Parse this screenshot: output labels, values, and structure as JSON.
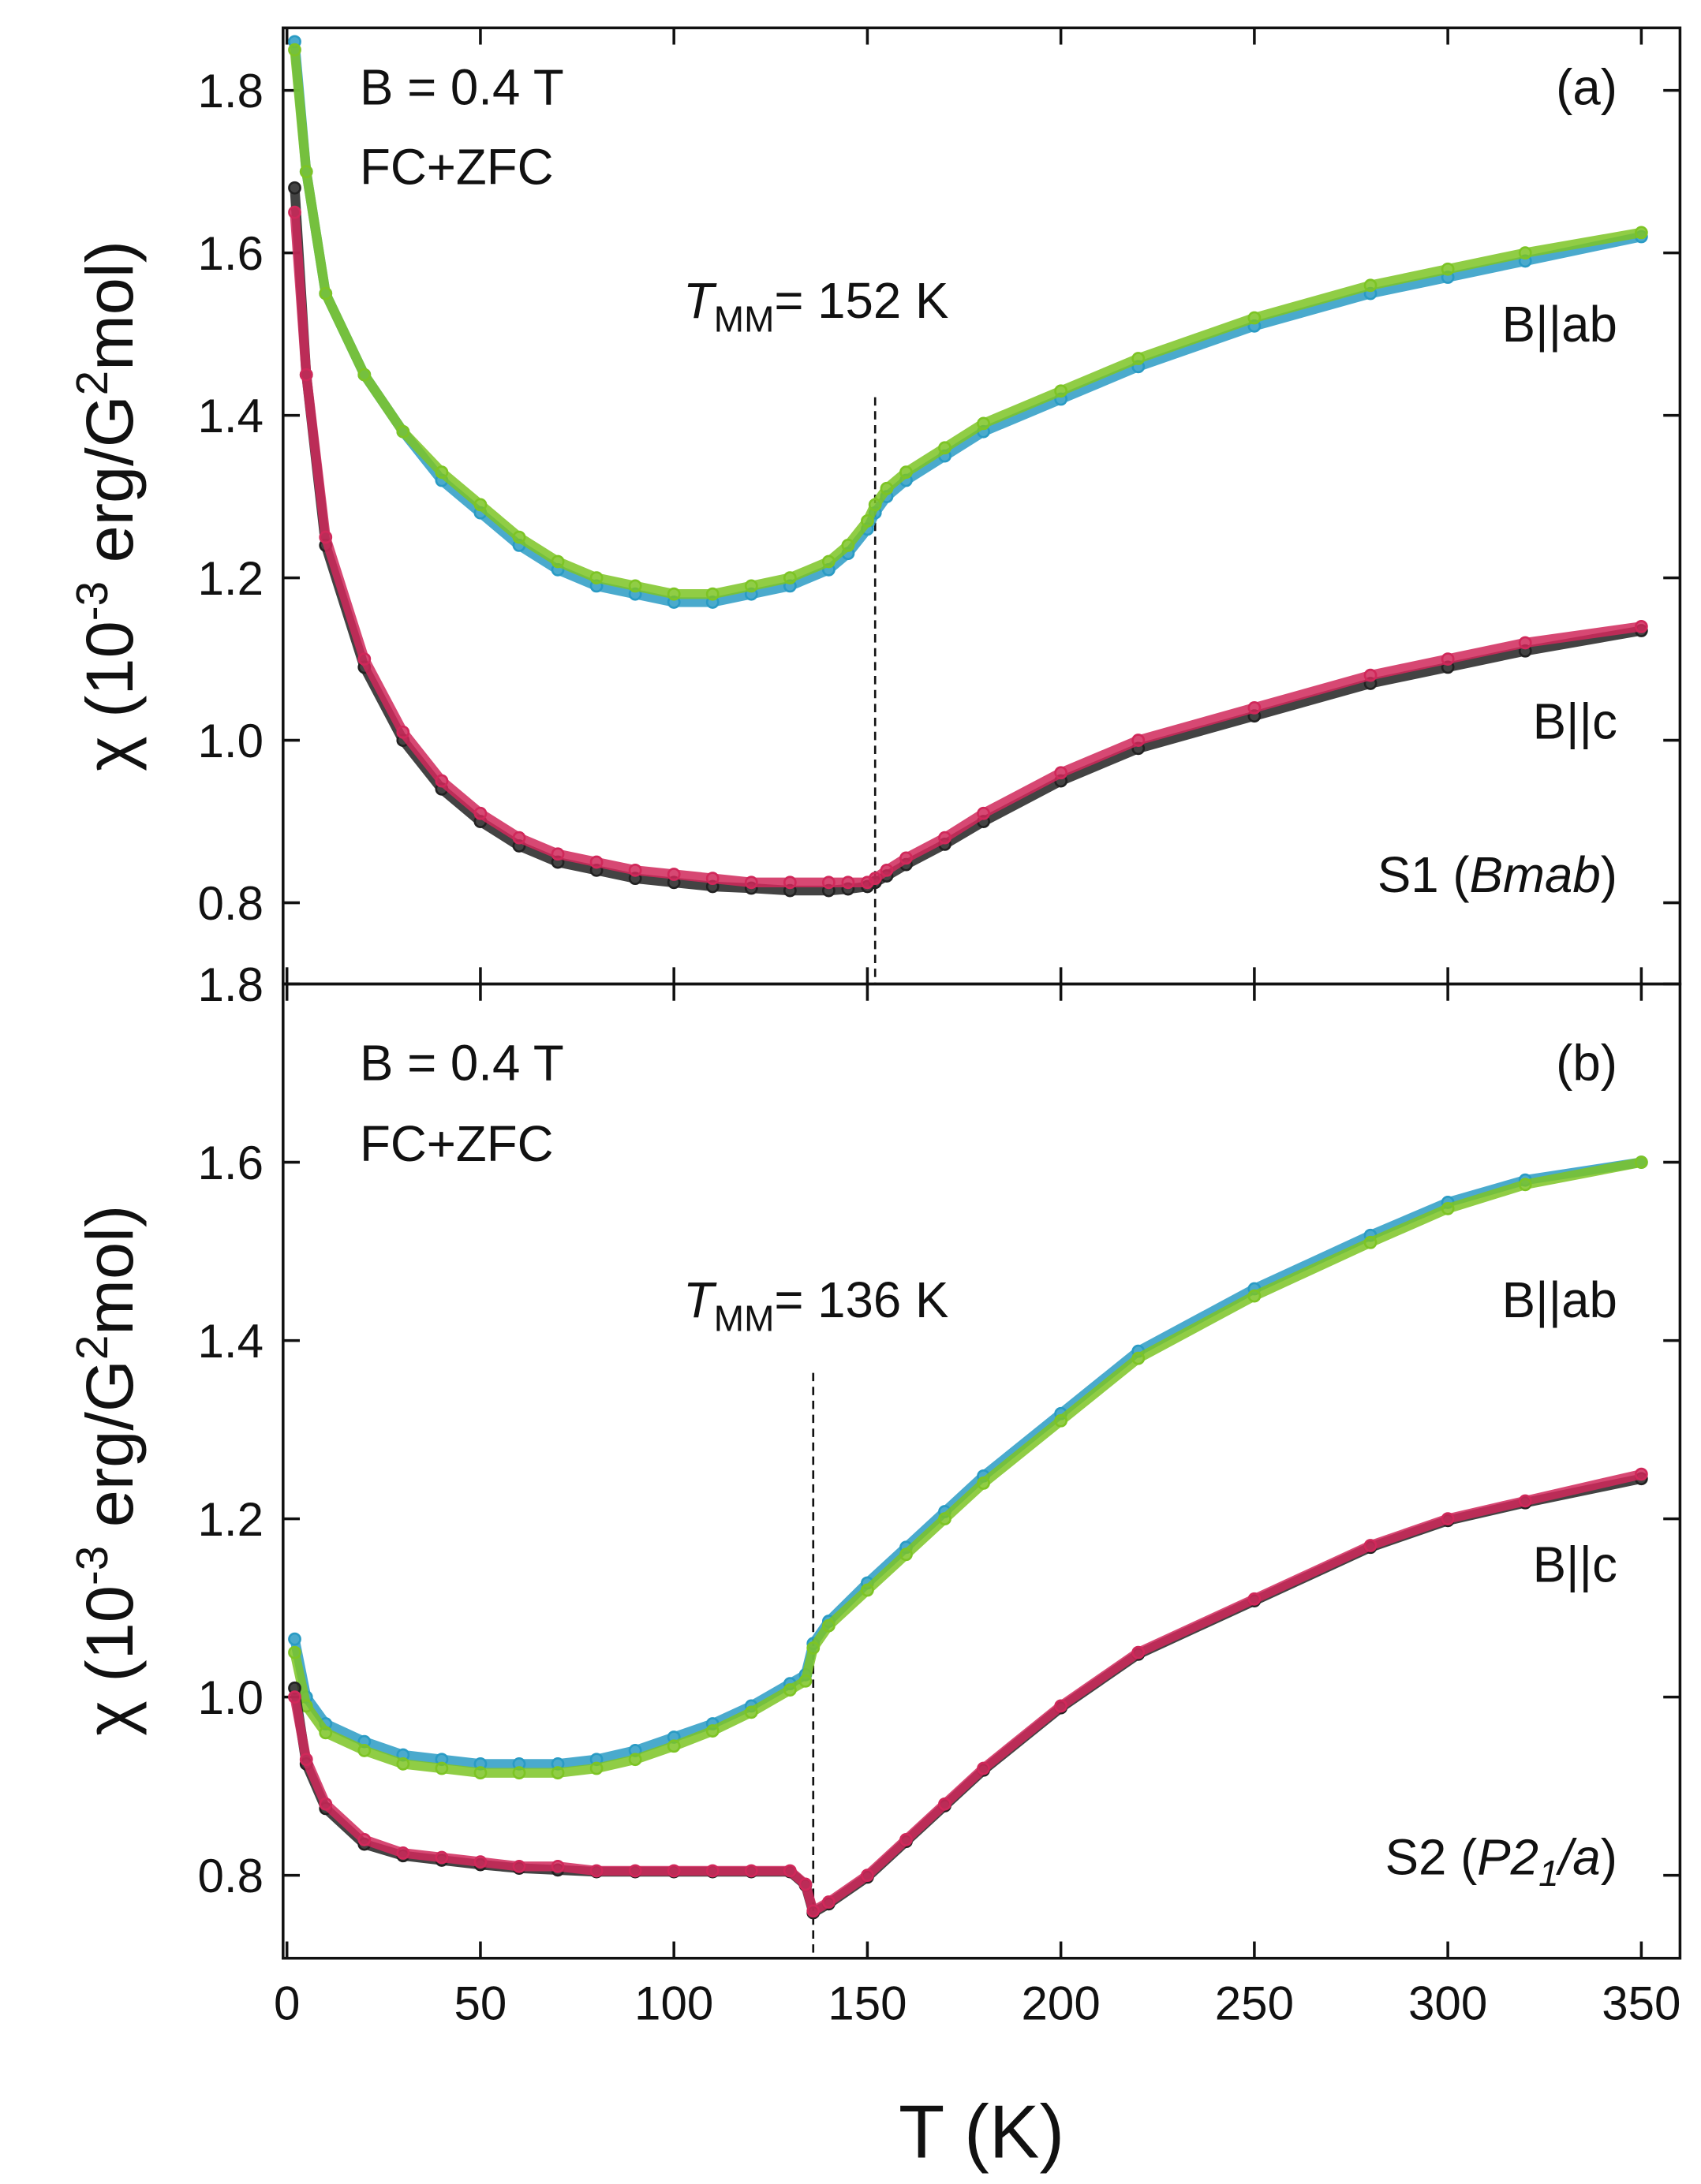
{
  "chart_data": [
    {
      "type": "scatter",
      "ylabel": [
        "χ (10",
        "-3",
        " erg/G",
        "2",
        "mol)"
      ],
      "x": [
        2,
        5,
        10,
        20,
        30,
        40,
        50,
        60,
        70,
        80,
        90,
        100,
        110,
        120,
        130,
        140,
        145,
        150,
        152,
        155,
        160,
        170,
        180,
        200,
        220,
        250,
        280,
        300,
        320,
        350
      ],
      "series": [
        {
          "color": "#2a9bc4",
          "values": [
            1.86,
            1.7,
            1.55,
            1.45,
            1.38,
            1.32,
            1.28,
            1.24,
            1.21,
            1.19,
            1.18,
            1.17,
            1.17,
            1.18,
            1.19,
            1.21,
            1.23,
            1.26,
            1.28,
            1.3,
            1.32,
            1.35,
            1.38,
            1.42,
            1.46,
            1.51,
            1.55,
            1.57,
            1.59,
            1.62
          ]
        },
        {
          "color": "#7dc425",
          "values": [
            1.85,
            1.7,
            1.55,
            1.45,
            1.38,
            1.33,
            1.29,
            1.25,
            1.22,
            1.2,
            1.19,
            1.18,
            1.18,
            1.19,
            1.2,
            1.22,
            1.24,
            1.27,
            1.29,
            1.31,
            1.33,
            1.36,
            1.39,
            1.43,
            1.47,
            1.52,
            1.56,
            1.58,
            1.6,
            1.625
          ]
        },
        {
          "color": "#222222",
          "values": [
            1.68,
            1.45,
            1.24,
            1.09,
            1.0,
            0.94,
            0.9,
            0.87,
            0.85,
            0.84,
            0.83,
            0.825,
            0.82,
            0.818,
            0.815,
            0.815,
            0.817,
            0.82,
            0.825,
            0.833,
            0.847,
            0.872,
            0.9,
            0.95,
            0.99,
            1.03,
            1.07,
            1.09,
            1.11,
            1.135
          ]
        },
        {
          "color": "#d0285a",
          "values": [
            1.65,
            1.45,
            1.25,
            1.1,
            1.01,
            0.95,
            0.91,
            0.88,
            0.86,
            0.85,
            0.84,
            0.835,
            0.83,
            0.825,
            0.825,
            0.825,
            0.825,
            0.825,
            0.83,
            0.84,
            0.855,
            0.88,
            0.91,
            0.96,
            1.0,
            1.04,
            1.08,
            1.1,
            1.12,
            1.14
          ]
        }
      ],
      "xlim": [
        -1,
        360
      ],
      "xticks": [
        0,
        50,
        100,
        150,
        200,
        250,
        300,
        350
      ],
      "ylim": [
        0.7,
        1.877
      ],
      "yticks": [
        0.8,
        {
          "value": 1,
          "label": "1.0"
        },
        1.2,
        1.4,
        1.6,
        1.8
      ],
      "field": [
        "B = 0.4 T",
        "FC+ZFC"
      ],
      "panel_label": "(a)",
      "transition": {
        "symbol": "T",
        "sub": "MM",
        "text": "= 152 K",
        "value": 152
      },
      "curve_labels": [
        "B||ab",
        "B||c"
      ],
      "sample": [
        {
          "text": "S1 ("
        },
        {
          "text": "Bmab",
          "italic": true
        },
        {
          "text": ")"
        }
      ]
    },
    {
      "type": "scatter",
      "ylabel": [
        "χ (10",
        "-3",
        " erg/G",
        "2",
        "mol)"
      ],
      "xlabel": "T (K)",
      "x": [
        2,
        5,
        10,
        20,
        30,
        40,
        50,
        60,
        70,
        80,
        90,
        100,
        110,
        120,
        130,
        134,
        136,
        140,
        150,
        160,
        170,
        180,
        200,
        220,
        250,
        280,
        300,
        320,
        350
      ],
      "series": [
        {
          "color": "#2a9bc4",
          "values": [
            1.065,
            1.0,
            0.97,
            0.95,
            0.935,
            0.93,
            0.925,
            0.925,
            0.925,
            0.93,
            0.94,
            0.955,
            0.97,
            0.99,
            1.015,
            1.025,
            1.06,
            1.085,
            1.128,
            1.168,
            1.208,
            1.248,
            1.318,
            1.388,
            1.458,
            1.518,
            1.555,
            1.58,
            1.6
          ]
        },
        {
          "color": "#7dc425",
          "values": [
            1.05,
            0.99,
            0.96,
            0.94,
            0.925,
            0.92,
            0.915,
            0.915,
            0.915,
            0.92,
            0.93,
            0.945,
            0.962,
            0.983,
            1.008,
            1.018,
            1.055,
            1.08,
            1.12,
            1.16,
            1.2,
            1.24,
            1.31,
            1.38,
            1.45,
            1.51,
            1.548,
            1.575,
            1.6
          ]
        },
        {
          "color": "#222222",
          "values": [
            1.01,
            0.925,
            0.875,
            0.835,
            0.822,
            0.817,
            0.812,
            0.808,
            0.806,
            0.804,
            0.804,
            0.804,
            0.804,
            0.804,
            0.804,
            0.789,
            0.758,
            0.768,
            0.798,
            0.838,
            0.878,
            0.918,
            0.988,
            1.048,
            1.108,
            1.168,
            1.198,
            1.218,
            1.245
          ]
        },
        {
          "color": "#d0285a",
          "values": [
            1.0,
            0.93,
            0.88,
            0.84,
            0.825,
            0.82,
            0.815,
            0.81,
            0.81,
            0.805,
            0.805,
            0.805,
            0.805,
            0.805,
            0.805,
            0.79,
            0.76,
            0.77,
            0.8,
            0.84,
            0.88,
            0.92,
            0.99,
            1.05,
            1.11,
            1.17,
            1.2,
            1.22,
            1.25
          ]
        }
      ],
      "xlim": [
        -1,
        360
      ],
      "xticks": [
        0,
        50,
        100,
        150,
        200,
        250,
        300,
        350
      ],
      "ylim": [
        0.707,
        1.8
      ],
      "yticks": [
        0.8,
        {
          "value": 1,
          "label": "1.0"
        },
        1.2,
        1.4,
        1.6,
        1.8
      ],
      "field": [
        "B = 0.4 T",
        "FC+ZFC"
      ],
      "panel_label": "(b)",
      "transition": {
        "symbol": "T",
        "sub": "MM",
        "text": "= 136 K",
        "value": 136
      },
      "curve_labels": [
        "B||ab",
        "B||c"
      ],
      "sample": [
        {
          "text": "S2 ("
        },
        {
          "text": "P2",
          "italic": true
        },
        {
          "text": "1",
          "italic": true,
          "sub": true
        },
        {
          "text": "/a",
          "italic": true
        },
        {
          "text": ")"
        }
      ]
    }
  ]
}
